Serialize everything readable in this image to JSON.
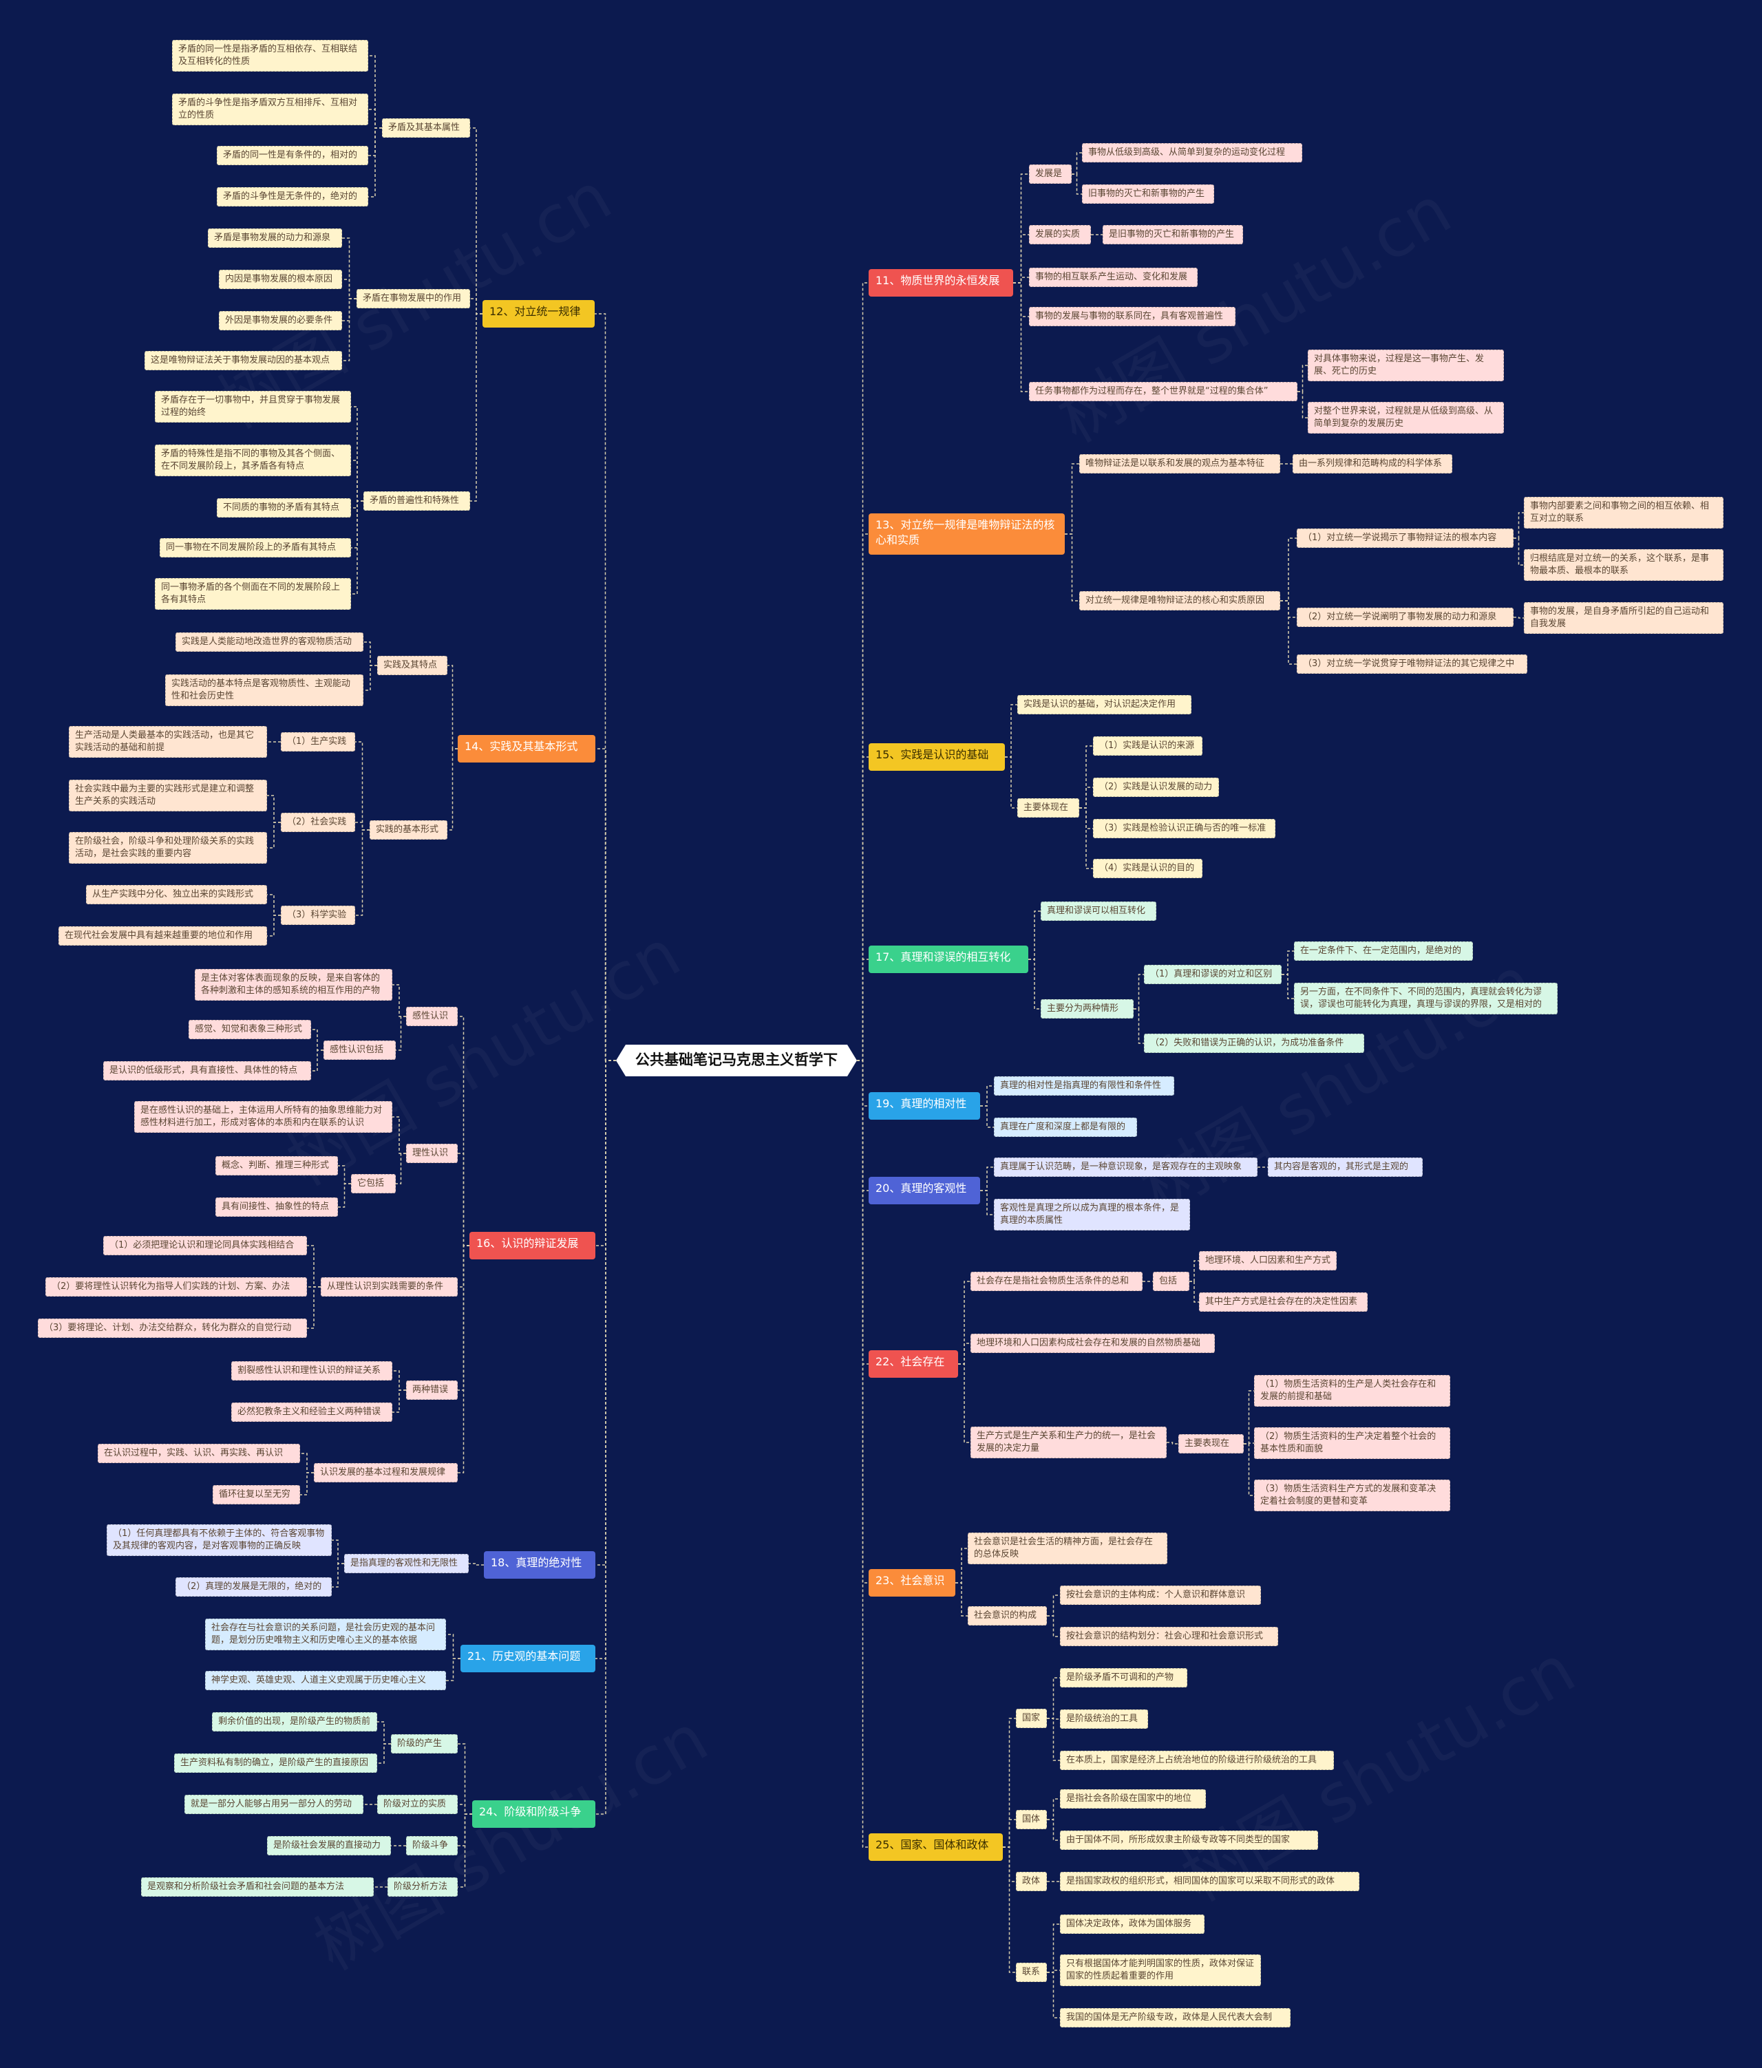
{
  "root": {
    "id": "root",
    "text": "公共基础笔记马克思主义哲学下"
  },
  "colors": {
    "background": "#0c1a4f",
    "root_bg": "#ffffff",
    "root_text": "#111111",
    "line": "#d9cfae",
    "yellow": "#f3c623",
    "yellow_light": "#fff4cc",
    "orange": "#fb8c3a",
    "orange_light": "#ffe5d1",
    "red": "#ef5350",
    "red_light": "#ffdcdc",
    "blue": "#29a3e8",
    "blue_light": "#d6ecff",
    "green": "#3ad18c",
    "green_light": "#d7f7e6",
    "indigo": "#4f63d6",
    "indigo_light": "#e0e4ff"
  },
  "left_branches": [
    {
      "id": "b12",
      "text": "12、对立统一规律",
      "color": "yellow",
      "children": [
        {
          "id": "b12a",
          "text": "矛盾及其基本属性",
          "children": [
            {
              "id": "b12a1",
              "text": "矛盾的同一性是指矛盾的互相依存、互相联结及互相转化的性质"
            },
            {
              "id": "b12a2",
              "text": "矛盾的斗争性是指矛盾双方互相排斥、互相对立的性质"
            },
            {
              "id": "b12a3",
              "text": "矛盾的同一性是有条件的，相对的"
            },
            {
              "id": "b12a4",
              "text": "矛盾的斗争性是无条件的，绝对的"
            }
          ]
        },
        {
          "id": "b12b",
          "text": "矛盾在事物发展中的作用",
          "children": [
            {
              "id": "b12b1",
              "text": "矛盾是事物发展的动力和源泉"
            },
            {
              "id": "b12b2",
              "text": "内因是事物发展的根本原因"
            },
            {
              "id": "b12b3",
              "text": "外因是事物发展的必要条件"
            },
            {
              "id": "b12b4",
              "text": "这是唯物辩证法关于事物发展动因的基本观点"
            }
          ]
        },
        {
          "id": "b12c",
          "text": "矛盾的普遍性和特殊性",
          "children": [
            {
              "id": "b12c1",
              "text": "矛盾存在于一切事物中，并且贯穿于事物发展过程的始终"
            },
            {
              "id": "b12c2",
              "text": "矛盾的特殊性是指不同的事物及其各个侧面、在不同发展阶段上，其矛盾各有特点"
            },
            {
              "id": "b12c3",
              "text": "不同质的事物的矛盾有其特点"
            },
            {
              "id": "b12c4",
              "text": "同一事物在不同发展阶段上的矛盾有其特点"
            },
            {
              "id": "b12c5",
              "text": "同一事物矛盾的各个侧面在不同的发展阶段上各有其特点"
            }
          ]
        }
      ]
    },
    {
      "id": "b14",
      "text": "14、实践及其基本形式",
      "color": "orange",
      "children": [
        {
          "id": "b14a",
          "text": "实践及其特点",
          "children": [
            {
              "id": "b14a1",
              "text": "实践是人类能动地改造世界的客观物质活动"
            },
            {
              "id": "b14a2",
              "text": "实践活动的基本特点是客观物质性、主观能动性和社会历史性"
            }
          ]
        },
        {
          "id": "b14b",
          "text": "实践的基本形式",
          "children": [
            {
              "id": "b14b1",
              "text": "（1）生产实践",
              "children": [
                {
                  "id": "b14b1a",
                  "text": "生产活动是人类最基本的实践活动，也是其它实践活动的基础和前提"
                }
              ]
            },
            {
              "id": "b14b2",
              "text": "（2）社会实践",
              "children": [
                {
                  "id": "b14b2a",
                  "text": "社会实践中最为主要的实践形式是建立和调整生产关系的实践活动"
                },
                {
                  "id": "b14b2b",
                  "text": "在阶级社会，阶级斗争和处理阶级关系的实践活动，是社会实践的重要内容"
                }
              ]
            },
            {
              "id": "b14b3",
              "text": "（3）科学实验",
              "children": [
                {
                  "id": "b14b3a",
                  "text": "从生产实践中分化、独立出来的实践形式"
                },
                {
                  "id": "b14b3b",
                  "text": "在现代社会发展中具有越来越重要的地位和作用"
                }
              ]
            }
          ]
        }
      ]
    },
    {
      "id": "b16",
      "text": "16、认识的辩证发展",
      "color": "red",
      "children": [
        {
          "id": "b16a",
          "text": "感性认识",
          "children": [
            {
              "id": "b16a1",
              "text": "是主体对客体表面现象的反映，是来自客体的各种刺激和主体的感知系统的相互作用的产物"
            },
            {
              "id": "b16a2",
              "text": "感性认识包括",
              "children": [
                {
                  "id": "b16a2a",
                  "text": "感觉、知觉和表象三种形式"
                },
                {
                  "id": "b16a2b",
                  "text": "是认识的低级形式，具有直接性、具体性的特点"
                }
              ]
            }
          ]
        },
        {
          "id": "b16b",
          "text": "理性认识",
          "children": [
            {
              "id": "b16b1",
              "text": "是在感性认识的基础上，主体运用人所特有的抽象思维能力对感性材料进行加工，形成对客体的本质和内在联系的认识"
            },
            {
              "id": "b16b2",
              "text": "它包括",
              "children": [
                {
                  "id": "b16b2a",
                  "text": "概念、判断、推理三种形式"
                },
                {
                  "id": "b16b2b",
                  "text": "具有间接性、抽象性的特点"
                }
              ]
            }
          ]
        },
        {
          "id": "b16c",
          "text": "从理性认识到实践需要的条件",
          "children": [
            {
              "id": "b16c1",
              "text": "（1）必须把理论认识和理论同具体实践相结合"
            },
            {
              "id": "b16c2",
              "text": "（2）要将理性认识转化为指导人们实践的计划、方案、办法"
            },
            {
              "id": "b16c3",
              "text": "（3）要将理论、计划、办法交给群众，转化为群众的自觉行动"
            }
          ]
        },
        {
          "id": "b16d",
          "text": "两种错误",
          "children": [
            {
              "id": "b16d1",
              "text": "割裂感性认识和理性认识的辩证关系"
            },
            {
              "id": "b16d2",
              "text": "必然犯教条主义和经验主义两种错误"
            }
          ]
        },
        {
          "id": "b16e",
          "text": "认识发展的基本过程和发展规律",
          "children": [
            {
              "id": "b16e1",
              "text": "在认识过程中，实践、认识、再实践、再认识"
            },
            {
              "id": "b16e2",
              "text": "循环往复以至无穷"
            }
          ]
        }
      ]
    },
    {
      "id": "b18",
      "text": "18、真理的绝对性",
      "color": "indigo",
      "children": [
        {
          "id": "b18a",
          "text": "是指真理的客观性和无限性",
          "children": [
            {
              "id": "b18a1",
              "text": "（1）任何真理都具有不依赖于主体的、符合客观事物及其规律的客观内容，是对客观事物的正确反映"
            },
            {
              "id": "b18a2",
              "text": "（2）真理的发展是无限的，绝对的"
            }
          ]
        }
      ]
    },
    {
      "id": "b21",
      "text": "21、历史观的基本问题",
      "color": "blue",
      "children": [
        {
          "id": "b21a",
          "text": "社会存在与社会意识的关系问题，是社会历史观的基本问题，是划分历史唯物主义和历史唯心主义的基本依据"
        },
        {
          "id": "b21b",
          "text": "神学史观、英雄史观、人道主义史观属于历史唯心主义"
        }
      ]
    },
    {
      "id": "b24",
      "text": "24、阶级和阶级斗争",
      "color": "green",
      "children": [
        {
          "id": "b24a",
          "text": "阶级的产生",
          "children": [
            {
              "id": "b24a1",
              "text": "剩余价值的出现，是阶级产生的物质前"
            },
            {
              "id": "b24a2",
              "text": "生产资料私有制的确立，是阶级产生的直接原因"
            }
          ]
        },
        {
          "id": "b24b",
          "text": "阶级对立的实质",
          "children": [
            {
              "id": "b24b1",
              "text": "就是一部分人能够占用另一部分人的劳动"
            }
          ]
        },
        {
          "id": "b24c",
          "text": "阶级斗争",
          "children": [
            {
              "id": "b24c1",
              "text": "是阶级社会发展的直接动力"
            }
          ]
        },
        {
          "id": "b24d",
          "text": "阶级分析方法",
          "children": [
            {
              "id": "b24d1",
              "text": "是观察和分析阶级社会矛盾和社会问题的基本方法"
            }
          ]
        }
      ]
    }
  ],
  "right_branches": [
    {
      "id": "b11",
      "text": "11、物质世界的永恒发展",
      "color": "red",
      "children": [
        {
          "id": "b11a",
          "text": "发展是",
          "children": [
            {
              "id": "b11a1",
              "text": "事物从低级到高级、从简单到复杂的运动变化过程"
            },
            {
              "id": "b11a2",
              "text": "旧事物的灭亡和新事物的产生"
            }
          ]
        },
        {
          "id": "b11b",
          "text": "发展的实质",
          "children": [
            {
              "id": "b11b1",
              "text": "是旧事物的灭亡和新事物的产生"
            }
          ]
        },
        {
          "id": "b11c",
          "text": "事物的相互联系产生运动、变化和发展"
        },
        {
          "id": "b11d",
          "text": "事物的发展与事物的联系同在，具有客观普遍性"
        },
        {
          "id": "b11e",
          "text": "任务事物都作为过程而存在，整个世界就是“过程的集合体”",
          "children": [
            {
              "id": "b11e1",
              "text": "对具体事物来说，过程是这一事物产生、发展、死亡的历史"
            },
            {
              "id": "b11e2",
              "text": "对整个世界来说，过程就是从低级到高级、从简单到复杂的发展历史"
            }
          ]
        }
      ]
    },
    {
      "id": "b13",
      "text": "13、对立统一规律是唯物辩证法的核心和实质",
      "color": "orange",
      "children": [
        {
          "id": "b13a",
          "text": "唯物辩证法是以联系和发展的观点为基本特征",
          "children": [
            {
              "id": "b13a1",
              "text": "由一系列规律和范畴构成的科学体系"
            }
          ]
        },
        {
          "id": "b13b",
          "text": "对立统一规律是唯物辩证法的核心和实质原因",
          "children": [
            {
              "id": "b13b1",
              "text": "（1）对立统一学说揭示了事物辩证法的根本内容",
              "children": [
                {
                  "id": "b13b1a",
                  "text": "事物内部要素之间和事物之间的相互依赖、相互对立的联系"
                },
                {
                  "id": "b13b1b",
                  "text": "归根结底是对立统一的关系，这个联系，是事物最本质、最根本的联系"
                }
              ]
            },
            {
              "id": "b13b2",
              "text": "（2）对立统一学说阐明了事物发展的动力和源泉",
              "children": [
                {
                  "id": "b13b2a",
                  "text": "事物的发展，是自身矛盾所引起的自己运动和自我发展"
                }
              ]
            },
            {
              "id": "b13b3",
              "text": "（3）对立统一学说贯穿于唯物辩证法的其它规律之中"
            }
          ]
        }
      ]
    },
    {
      "id": "b15",
      "text": "15、实践是认识的基础",
      "color": "yellow",
      "children": [
        {
          "id": "b15a",
          "text": "实践是认识的基础，对认识起决定作用"
        },
        {
          "id": "b15b",
          "text": "主要体现在",
          "children": [
            {
              "id": "b15b1",
              "text": "（1）实践是认识的来源"
            },
            {
              "id": "b15b2",
              "text": "（2）实践是认识发展的动力"
            },
            {
              "id": "b15b3",
              "text": "（3）实践是检验认识正确与否的唯一标准"
            },
            {
              "id": "b15b4",
              "text": "（4）实践是认识的目的"
            }
          ]
        }
      ]
    },
    {
      "id": "b17",
      "text": "17、真理和谬误的相互转化",
      "color": "green",
      "children": [
        {
          "id": "b17a",
          "text": "真理和谬误可以相互转化"
        },
        {
          "id": "b17b",
          "text": "主要分为两种情形",
          "children": [
            {
              "id": "b17b1",
              "text": "（1）真理和谬误的对立和区别",
              "children": [
                {
                  "id": "b17b1a",
                  "text": "在一定条件下、在一定范围内，是绝对的"
                },
                {
                  "id": "b17b1b",
                  "text": "另一方面，在不同条件下、不同的范围内，真理就会转化为谬误，谬误也可能转化为真理，真理与谬误的界限，又是相对的"
                }
              ]
            },
            {
              "id": "b17b2",
              "text": "（2）失败和错误为正确的认识，为成功准备条件"
            }
          ]
        }
      ]
    },
    {
      "id": "b19",
      "text": "19、真理的相对性",
      "color": "blue",
      "children": [
        {
          "id": "b19a",
          "text": "真理的相对性是指真理的有限性和条件性"
        },
        {
          "id": "b19b",
          "text": "真理在广度和深度上都是有限的"
        }
      ]
    },
    {
      "id": "b20",
      "text": "20、真理的客观性",
      "color": "indigo",
      "children": [
        {
          "id": "b20a",
          "text": "真理属于认识范畴，是一种意识现象，是客观存在的主观映象",
          "children": [
            {
              "id": "b20a1",
              "text": "其内容是客观的，其形式是主观的"
            }
          ]
        },
        {
          "id": "b20b",
          "text": "客观性是真理之所以成为真理的根本条件，是真理的本质属性"
        }
      ]
    },
    {
      "id": "b22",
      "text": "22、社会存在",
      "color": "red",
      "children": [
        {
          "id": "b22a",
          "text": "社会存在是指社会物质生活条件的总和",
          "children": [
            {
              "id": "b22a1",
              "text": "包括",
              "children": [
                {
                  "id": "b22a1a",
                  "text": "地理环境、人口因素和生产方式"
                },
                {
                  "id": "b22a1b",
                  "text": "其中生产方式是社会存在的决定性因素"
                }
              ]
            }
          ]
        },
        {
          "id": "b22b",
          "text": "地理环境和人口因素构成社会存在和发展的自然物质基础"
        },
        {
          "id": "b22c",
          "text": "生产方式是生产关系和生产力的统一，是社会发展的决定力量",
          "children": [
            {
              "id": "b22c1",
              "text": "主要表现在",
              "children": [
                {
                  "id": "b22c1a",
                  "text": "（1）物质生活资料的生产是人类社会存在和发展的前提和基础"
                },
                {
                  "id": "b22c1b",
                  "text": "（2）物质生活资料的生产决定着整个社会的基本性质和面貌"
                },
                {
                  "id": "b22c1c",
                  "text": "（3）物质生活资料生产方式的发展和变革决定着社会制度的更替和变革"
                }
              ]
            }
          ]
        }
      ]
    },
    {
      "id": "b23",
      "text": "23、社会意识",
      "color": "orange",
      "children": [
        {
          "id": "b23a",
          "text": "社会意识是社会生活的精神方面，是社会存在的总体反映"
        },
        {
          "id": "b23b",
          "text": "社会意识的构成",
          "children": [
            {
              "id": "b23b1",
              "text": "按社会意识的主体构成：个人意识和群体意识"
            },
            {
              "id": "b23b2",
              "text": "按社会意识的结构划分：社会心理和社会意识形式"
            }
          ]
        }
      ]
    },
    {
      "id": "b25",
      "text": "25、国家、国体和政体",
      "color": "yellow",
      "children": [
        {
          "id": "b25a",
          "text": "国家",
          "children": [
            {
              "id": "b25a1",
              "text": "是阶级矛盾不可调和的产物"
            },
            {
              "id": "b25a2",
              "text": "是阶级统治的工具"
            },
            {
              "id": "b25a3",
              "text": "在本质上，国家是经济上占统治地位的阶级进行阶级统治的工具"
            }
          ]
        },
        {
          "id": "b25b",
          "text": "国体",
          "children": [
            {
              "id": "b25b1",
              "text": "是指社会各阶级在国家中的地位"
            },
            {
              "id": "b25b2",
              "text": "由于国体不同，所形成奴隶主阶级专政等不同类型的国家"
            }
          ]
        },
        {
          "id": "b25c",
          "text": "政体",
          "children": [
            {
              "id": "b25c1",
              "text": "是指国家政权的组织形式，相同国体的国家可以采取不同形式的政体"
            }
          ]
        },
        {
          "id": "b25d",
          "text": "联系",
          "children": [
            {
              "id": "b25d1",
              "text": "国体决定政体，政体为国体服务"
            },
            {
              "id": "b25d2",
              "text": "只有根据国体才能判明国家的性质，政体对保证国家的性质起着重要的作用"
            },
            {
              "id": "b25d3",
              "text": "我国的国体是无产阶级专政，政体是人民代表大会制"
            }
          ]
        }
      ]
    }
  ]
}
